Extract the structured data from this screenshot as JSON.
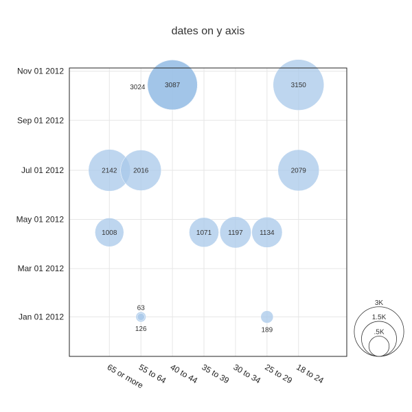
{
  "chart_data": {
    "type": "bubble",
    "title": "dates on y axis",
    "categories": [
      "65 or more",
      "55 to 64",
      "40 to 44",
      "35 to 39",
      "30 to 34",
      "25 to 29",
      "18 to 24"
    ],
    "y_ticks": [
      "Nov 01 2012",
      "Sep 01 2012",
      "Jul 01 2012",
      "May 01 2012",
      "Mar 01 2012",
      "Jan 01 2012"
    ],
    "ylim": [
      "2011-11-13",
      "2012-11-05"
    ],
    "points": [
      {
        "x": "40 to 44",
        "date": "2012-10-15",
        "size": 3087,
        "label": "3087",
        "highlight": true
      },
      {
        "x": "40 to 44",
        "date": "2012-10-15",
        "size": 3024,
        "label": "3024"
      },
      {
        "x": "18 to 24",
        "date": "2012-10-15",
        "size": 3150,
        "label": "3150"
      },
      {
        "x": "65 or more",
        "date": "2012-07-01",
        "size": 2142,
        "label": "2142"
      },
      {
        "x": "55 to 64",
        "date": "2012-07-01",
        "size": 2016,
        "label": "2016"
      },
      {
        "x": "18 to 24",
        "date": "2012-07-01",
        "size": 2079,
        "label": "2079"
      },
      {
        "x": "65 or more",
        "date": "2012-04-15",
        "size": 1008,
        "label": "1008"
      },
      {
        "x": "35 to 39",
        "date": "2012-04-15",
        "size": 1071,
        "label": "1071"
      },
      {
        "x": "30 to 34",
        "date": "2012-04-15",
        "size": 1197,
        "label": "1197"
      },
      {
        "x": "25 to 29",
        "date": "2012-04-15",
        "size": 1134,
        "label": "1134"
      },
      {
        "x": "55 to 64",
        "date": "2012-01-01",
        "size": 126,
        "label": "126"
      },
      {
        "x": "55 to 64",
        "date": "2012-01-01",
        "size": 63,
        "label": "63"
      },
      {
        "x": "25 to 29",
        "date": "2012-01-01",
        "size": 189,
        "label": "189"
      }
    ],
    "size_legend": [
      {
        "value": 3000,
        "label": "3K"
      },
      {
        "value": 1500,
        "label": "1.5K"
      },
      {
        "value": 500,
        "label": ".5K"
      }
    ],
    "grid": true,
    "colors": {
      "bubble": "#a8c8ea",
      "bubble_highlight": "#7aaedc",
      "grid": "#e6e6e6",
      "axis": "#222222"
    }
  }
}
